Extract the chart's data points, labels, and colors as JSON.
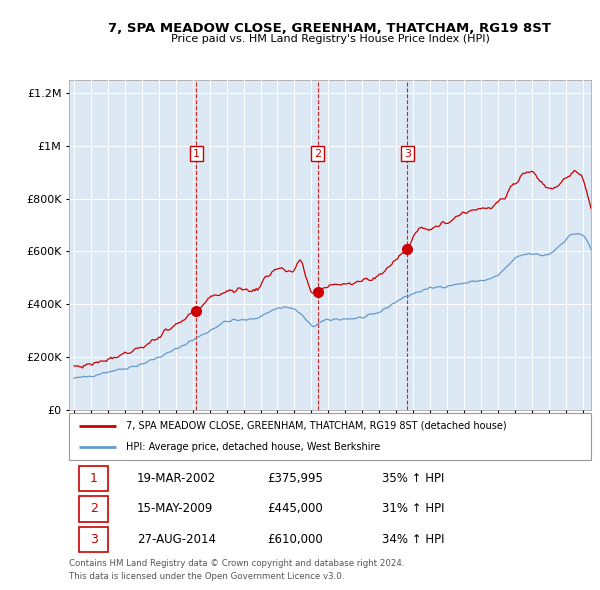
{
  "title": "7, SPA MEADOW CLOSE, GREENHAM, THATCHAM, RG19 8ST",
  "subtitle": "Price paid vs. HM Land Registry's House Price Index (HPI)",
  "legend_line1": "7, SPA MEADOW CLOSE, GREENHAM, THATCHAM, RG19 8ST (detached house)",
  "legend_line2": "HPI: Average price, detached house, West Berkshire",
  "footer1": "Contains HM Land Registry data © Crown copyright and database right 2024.",
  "footer2": "This data is licensed under the Open Government Licence v3.0.",
  "sales": [
    {
      "num": 1,
      "date": "19-MAR-2002",
      "price": 375995,
      "pct": "35%",
      "dir": "↑"
    },
    {
      "num": 2,
      "date": "15-MAY-2009",
      "price": 445000,
      "pct": "31%",
      "dir": "↑"
    },
    {
      "num": 3,
      "date": "27-AUG-2014",
      "price": 610000,
      "pct": "34%",
      "dir": "↑"
    }
  ],
  "sale_years": [
    2002.22,
    2009.38,
    2014.66
  ],
  "sale_prices": [
    375995,
    445000,
    610000
  ],
  "background_color": "#ffffff",
  "chart_bg_color": "#dce9f5",
  "grid_color": "#ffffff",
  "red_color": "#cc0000",
  "blue_color": "#6699cc",
  "vline_color": "#cc0000",
  "ylim": [
    0,
    1250000
  ],
  "xlim_start": 1994.7,
  "xlim_end": 2025.5
}
